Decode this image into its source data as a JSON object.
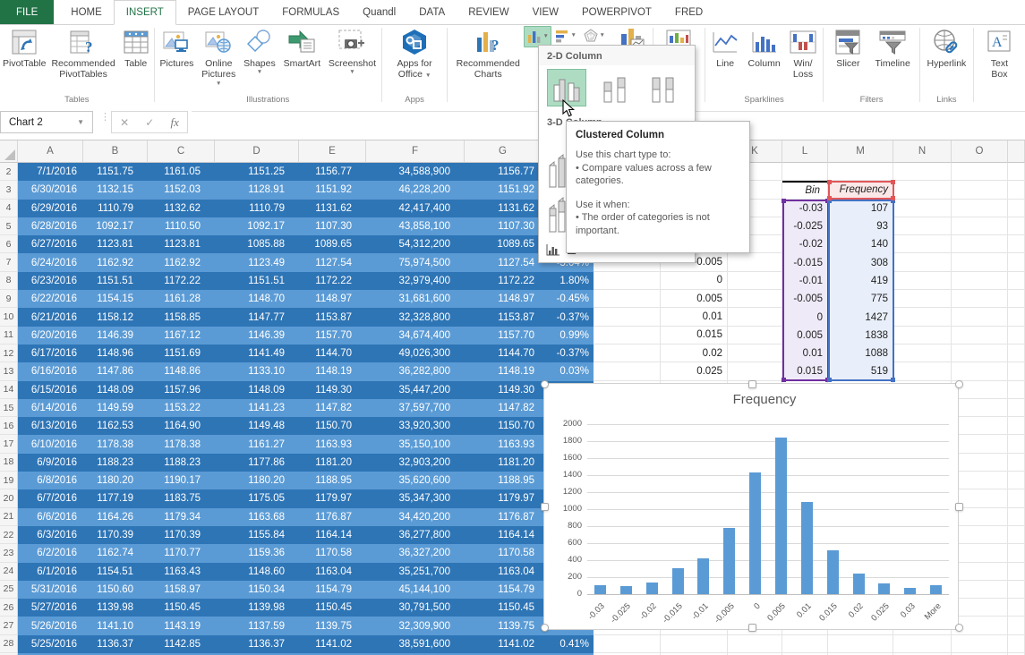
{
  "tabs": {
    "file": "FILE",
    "items": [
      "HOME",
      "INSERT",
      "PAGE LAYOUT",
      "FORMULAS",
      "Quandl",
      "DATA",
      "REVIEW",
      "VIEW",
      "POWERPIVOT",
      "FRED"
    ],
    "active": "INSERT"
  },
  "ribbon": {
    "pivottable": "PivotTable",
    "rec_pivot_1": "Recommended",
    "rec_pivot_2": "PivotTables",
    "table": "Table",
    "pictures": "Pictures",
    "online_1": "Online",
    "online_2": "Pictures",
    "shapes": "Shapes",
    "smartart": "SmartArt",
    "screenshot": "Screenshot",
    "apps_1": "Apps for",
    "apps_2": "Office",
    "rec_charts_1": "Recommended",
    "rec_charts_2": "Charts",
    "power_1": "Power",
    "power_2": "View",
    "spark_line": "Line",
    "spark_column": "Column",
    "winloss_1": "Win/",
    "winloss_2": "Loss",
    "slicer": "Slicer",
    "timeline": "Timeline",
    "hyperlink": "Hyperlink",
    "textbox_1": "Text",
    "textbox_2": "Box",
    "group_labels": {
      "tables": "Tables",
      "illustrations": "Illustrations",
      "apps": "Apps",
      "charts": "Charts",
      "reports": "Reports",
      "sparklines": "Sparklines",
      "filters": "Filters",
      "links": "Links"
    }
  },
  "formula_bar": {
    "name_box": "Chart 2",
    "formula": ""
  },
  "chart_dropdown": {
    "section_2d": "2-D Column",
    "section_3d": "3-D Column",
    "more_prefix": "M",
    "more_rest": "ore Column Charts..."
  },
  "tooltip": {
    "title": "Clustered Column",
    "intro": "Use this chart type to:",
    "bullet1": "• Compare values across a few categories.",
    "when": "Use it when:",
    "bullet2": "• The order of categories is not important."
  },
  "sheet": {
    "col_headers": [
      "A",
      "B",
      "C",
      "D",
      "E",
      "F",
      "G",
      "H",
      "I",
      "J",
      "K",
      "L",
      "M",
      "N",
      "O",
      ""
    ],
    "rows": [
      [
        "2",
        "7/1/2016",
        "1151.75",
        "1161.05",
        "1151.25",
        "1156.77",
        "34,588,900",
        "1156.77",
        "",
        "",
        "",
        ""
      ],
      [
        "3",
        "6/30/2016",
        "1132.15",
        "1152.03",
        "1128.91",
        "1151.92",
        "46,228,200",
        "1151.92",
        "",
        "",
        "Bin",
        "Frequency"
      ],
      [
        "4",
        "6/29/2016",
        "1110.79",
        "1132.62",
        "1110.79",
        "1131.62",
        "42,417,400",
        "1131.62",
        "",
        "",
        "-0.03",
        "107"
      ],
      [
        "5",
        "6/28/2016",
        "1092.17",
        "1110.50",
        "1092.17",
        "1107.30",
        "43,858,100",
        "1107.30",
        "",
        "",
        "-0.025",
        "93"
      ],
      [
        "6",
        "6/27/2016",
        "1123.81",
        "1123.81",
        "1085.88",
        "1089.65",
        "54,312,200",
        "1089.65",
        "",
        "",
        "-0.02",
        "140"
      ],
      [
        "7",
        "6/24/2016",
        "1162.92",
        "1162.92",
        "1123.49",
        "1127.54",
        "75,974,500",
        "1127.54",
        "-3.04%",
        "-0.005",
        "-0.015",
        "308"
      ],
      [
        "8",
        "6/23/2016",
        "1151.51",
        "1172.22",
        "1151.51",
        "1172.22",
        "32,979,400",
        "1172.22",
        "1.80%",
        "0",
        "-0.01",
        "419"
      ],
      [
        "9",
        "6/22/2016",
        "1154.15",
        "1161.28",
        "1148.70",
        "1148.97",
        "31,681,600",
        "1148.97",
        "-0.45%",
        "0.005",
        "-0.005",
        "775"
      ],
      [
        "10",
        "6/21/2016",
        "1158.12",
        "1158.85",
        "1147.77",
        "1153.87",
        "32,328,800",
        "1153.87",
        "-0.37%",
        "0.01",
        "0",
        "1427"
      ],
      [
        "11",
        "6/20/2016",
        "1146.39",
        "1167.12",
        "1146.39",
        "1157.70",
        "34,674,400",
        "1157.70",
        "0.99%",
        "0.015",
        "0.005",
        "1838"
      ],
      [
        "12",
        "6/17/2016",
        "1148.96",
        "1151.69",
        "1141.49",
        "1144.70",
        "49,026,300",
        "1144.70",
        "-0.37%",
        "0.02",
        "0.01",
        "1088"
      ],
      [
        "13",
        "6/16/2016",
        "1147.86",
        "1148.86",
        "1133.10",
        "1148.19",
        "36,282,800",
        "1148.19",
        "0.03%",
        "0.025",
        "0.015",
        "519"
      ],
      [
        "14",
        "6/15/2016",
        "1148.09",
        "1157.96",
        "1148.09",
        "1149.30",
        "35,447,200",
        "1149.30",
        "",
        "",
        "",
        ""
      ],
      [
        "15",
        "6/14/2016",
        "1149.59",
        "1153.22",
        "1141.23",
        "1147.82",
        "37,597,700",
        "1147.82",
        "",
        "",
        "",
        ""
      ],
      [
        "16",
        "6/13/2016",
        "1162.53",
        "1164.90",
        "1149.48",
        "1150.70",
        "33,920,300",
        "1150.70",
        "",
        "",
        "",
        ""
      ],
      [
        "17",
        "6/10/2016",
        "1178.38",
        "1178.38",
        "1161.27",
        "1163.93",
        "35,150,100",
        "1163.93",
        "",
        "",
        "",
        ""
      ],
      [
        "18",
        "6/9/2016",
        "1188.23",
        "1188.23",
        "1177.86",
        "1181.20",
        "32,903,200",
        "1181.20",
        "",
        "",
        "",
        ""
      ],
      [
        "19",
        "6/8/2016",
        "1180.20",
        "1190.17",
        "1180.20",
        "1188.95",
        "35,620,600",
        "1188.95",
        "",
        "",
        "",
        ""
      ],
      [
        "20",
        "6/7/2016",
        "1177.19",
        "1183.75",
        "1175.05",
        "1179.97",
        "35,347,300",
        "1179.97",
        "",
        "",
        "",
        ""
      ],
      [
        "21",
        "6/6/2016",
        "1164.26",
        "1179.34",
        "1163.68",
        "1176.87",
        "34,420,200",
        "1176.87",
        "",
        "",
        "",
        ""
      ],
      [
        "22",
        "6/3/2016",
        "1170.39",
        "1170.39",
        "1155.84",
        "1164.14",
        "36,277,800",
        "1164.14",
        "",
        "",
        "",
        ""
      ],
      [
        "23",
        "6/2/2016",
        "1162.74",
        "1170.77",
        "1159.36",
        "1170.58",
        "36,327,200",
        "1170.58",
        "",
        "",
        "",
        ""
      ],
      [
        "24",
        "6/1/2016",
        "1154.51",
        "1163.43",
        "1148.60",
        "1163.04",
        "35,251,700",
        "1163.04",
        "",
        "",
        "",
        ""
      ],
      [
        "25",
        "5/31/2016",
        "1150.60",
        "1158.97",
        "1150.34",
        "1154.79",
        "45,144,100",
        "1154.79",
        "",
        "",
        "",
        ""
      ],
      [
        "26",
        "5/27/2016",
        "1139.98",
        "1150.45",
        "1139.98",
        "1150.45",
        "30,791,500",
        "1150.45",
        "",
        "",
        "",
        ""
      ],
      [
        "27",
        "5/26/2016",
        "1141.10",
        "1143.19",
        "1137.59",
        "1139.75",
        "32,309,900",
        "1139.75",
        "",
        "",
        "",
        ""
      ],
      [
        "28",
        "5/25/2016",
        "1136.37",
        "1142.85",
        "1136.37",
        "1141.02",
        "38,591,600",
        "1141.02",
        "0.41%",
        "",
        "",
        ""
      ],
      [
        "29",
        "",
        "",
        "",
        "",
        "",
        "",
        "",
        "",
        "",
        "",
        ""
      ]
    ]
  },
  "chart_data": {
    "type": "bar",
    "title": "Frequency",
    "categories": [
      "-0.03",
      "-0.025",
      "-0.02",
      "-0.015",
      "-0.01",
      "-0.005",
      "0",
      "0.005",
      "0.01",
      "0.015",
      "0.02",
      "0.025",
      "0.03",
      "More"
    ],
    "values": [
      107,
      93,
      140,
      308,
      419,
      775,
      1427,
      1838,
      1088,
      519,
      240,
      130,
      70,
      105
    ],
    "xlabel": "",
    "ylabel": "",
    "ylim": [
      0,
      2000
    ],
    "ytick_step": 200,
    "grid": true,
    "legend": false,
    "bar_color": "#5B9BD5"
  },
  "colors": {
    "accent_green": "#217346",
    "table_row_dark": "#2E75B6",
    "table_row_light": "#5B9BD5",
    "bar": "#5B9BD5",
    "range_category": "#7030A0",
    "range_values": "#4472C4",
    "range_series_name": "#E15759",
    "dropdown_highlight": "#AEDCC3"
  }
}
